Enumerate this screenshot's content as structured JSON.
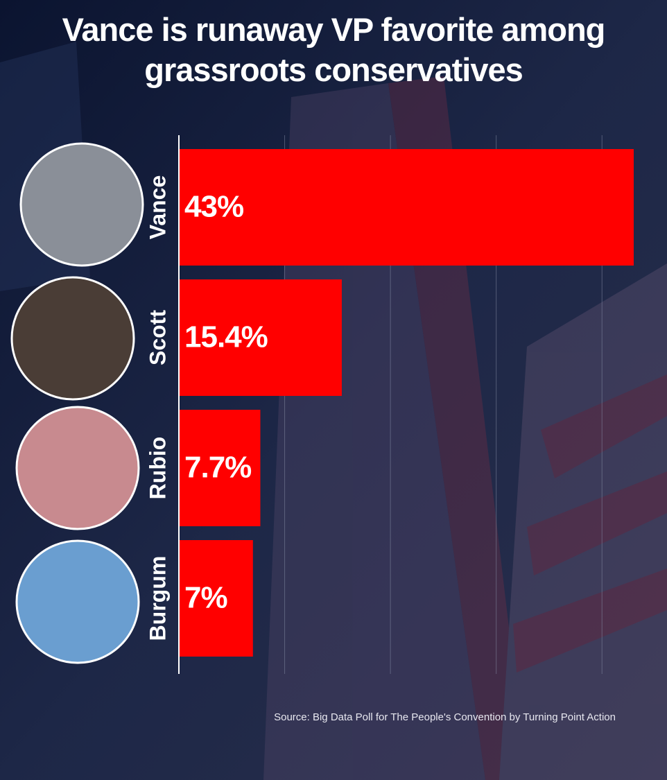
{
  "chart_data": {
    "type": "hbar",
    "title": "Vance is runaway VP favorite among grassroots conservatives",
    "categories": [
      "Vance",
      "Scott",
      "Rubio",
      "Burgum"
    ],
    "values": [
      43,
      15.4,
      7.7,
      7
    ],
    "value_labels": [
      "43%",
      "15.4%",
      "7.7%",
      "7%"
    ],
    "color": "#ff0000",
    "xlim": [
      0,
      43
    ],
    "xticks": [
      0,
      10,
      20,
      30,
      40
    ],
    "grid": true,
    "source": "Source: Big Data Poll for The People's Convention by Turning Point Action"
  }
}
